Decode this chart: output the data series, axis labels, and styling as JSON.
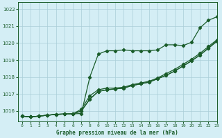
{
  "title": "Graphe pression niveau de la mer (hPa)",
  "bg_color": "#d4eef5",
  "grid_color": "#aacdd8",
  "line_color": "#1a5c2a",
  "xlim": [
    -0.5,
    23
  ],
  "ylim": [
    1015.4,
    1022.4
  ],
  "yticks": [
    1016,
    1017,
    1018,
    1019,
    1020,
    1021,
    1022
  ],
  "xticks": [
    0,
    1,
    2,
    3,
    4,
    5,
    6,
    7,
    8,
    9,
    10,
    11,
    12,
    13,
    14,
    15,
    16,
    17,
    18,
    19,
    20,
    21,
    22,
    23
  ],
  "series1": [
    1015.7,
    1015.65,
    1015.7,
    1015.75,
    1015.8,
    1015.82,
    1015.83,
    1016.0,
    1016.7,
    1017.15,
    1017.25,
    1017.3,
    1017.35,
    1017.5,
    1017.6,
    1017.7,
    1017.9,
    1018.1,
    1018.35,
    1018.65,
    1018.95,
    1019.3,
    1019.7,
    1020.1
  ],
  "series2": [
    1015.7,
    1015.65,
    1015.7,
    1015.75,
    1015.8,
    1015.82,
    1015.83,
    1016.0,
    1016.7,
    1017.15,
    1017.25,
    1017.3,
    1017.35,
    1017.5,
    1017.6,
    1017.7,
    1017.9,
    1018.1,
    1018.35,
    1018.65,
    1018.95,
    1019.3,
    1019.7,
    1020.15
  ],
  "series3": [
    1015.7,
    1015.65,
    1015.7,
    1015.75,
    1015.8,
    1015.82,
    1015.83,
    1016.1,
    1016.9,
    1017.25,
    1017.35,
    1017.35,
    1017.4,
    1017.55,
    1017.65,
    1017.75,
    1017.95,
    1018.2,
    1018.45,
    1018.75,
    1019.05,
    1019.4,
    1019.8,
    1020.2
  ],
  "series4": [
    1015.7,
    1015.65,
    1015.7,
    1015.75,
    1015.8,
    1015.82,
    1015.83,
    1015.85,
    1018.0,
    1019.35,
    1019.55,
    1019.55,
    1019.6,
    1019.55,
    1019.55,
    1019.55,
    1019.6,
    1019.9,
    1019.9,
    1019.85,
    1020.05,
    1020.9,
    1021.35,
    1021.55
  ]
}
